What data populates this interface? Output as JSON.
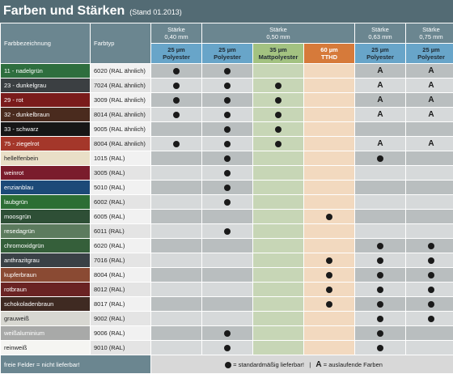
{
  "title": "Farben und Stärken",
  "subtitle": "(Stand 01.2013)",
  "colors": {
    "nadelgruen": "#2e6e3e",
    "dunkelgrau": "#3b3f42",
    "rot": "#7a1b1b",
    "dunkelbraun": "#4a2b1e",
    "schwarz": "#161616",
    "ziegelrot": "#a4372a",
    "hellelfenbein": "#e9dfc7",
    "weinrot": "#7a1c2c",
    "enzianblau": "#1c4a78",
    "laubgruen": "#2c6e34",
    "moosgruen": "#2e4f36",
    "resedagruen": "#5c7b5e",
    "chromoxidgruen": "#355f3a",
    "anthrazitgrau": "#3a4146",
    "kupferbraun": "#8a4a33",
    "rotbraun": "#6a2323",
    "schokoladenbraun": "#3f2a22",
    "grauweiss": "#d7d7d1",
    "weissaluminium": "#a8a9a8",
    "reinweiss": "#f5f5f2"
  },
  "header": {
    "col_name": "Farbbezeichnung",
    "col_typ": "Farbtyp",
    "groups": [
      {
        "label_1": "Stärke",
        "label_2": "0,40 mm"
      },
      {
        "label_1": "Stärke",
        "label_2": "0,50 mm"
      },
      {
        "label_1": "Stärke",
        "label_2": "0,63 mm"
      },
      {
        "label_1": "Stärke",
        "label_2": "0,75 mm"
      }
    ],
    "subs": [
      {
        "l1": "25 µm",
        "l2": "Polyester"
      },
      {
        "l1": "25 µm",
        "l2": "Polyester"
      },
      {
        "l1": "35 µm",
        "l2": "Mattpolyester"
      },
      {
        "l1": "60 µm",
        "l2": "TTHD"
      },
      {
        "l1": "25 µm",
        "l2": "Polyester"
      },
      {
        "l1": "25 µm",
        "l2": "Polyester"
      }
    ]
  },
  "rows": [
    {
      "name": "11 - nadelgrün",
      "typ": "6020 (RAL ähnlich)",
      "color": "#2e6e3e",
      "cells": [
        "dot",
        "dot",
        "",
        "",
        "A",
        "A"
      ]
    },
    {
      "name": "23 - dunkelgrau",
      "typ": "7024 (RAL ähnlich)",
      "color": "#3b3f42",
      "cells": [
        "dot",
        "dot",
        "dot",
        "",
        "A",
        "A"
      ]
    },
    {
      "name": "29 - rot",
      "typ": "3009 (RAL ähnlich)",
      "color": "#7a1b1b",
      "cells": [
        "dot",
        "dot",
        "dot",
        "",
        "A",
        "A"
      ]
    },
    {
      "name": "32 - dunkelbraun",
      "typ": "8014 (RAL ähnlich)",
      "color": "#4a2b1e",
      "cells": [
        "dot",
        "dot",
        "dot",
        "",
        "A",
        "A"
      ]
    },
    {
      "name": "33 - schwarz",
      "typ": "9005 (RAL ähnlich)",
      "color": "#161616",
      "cells": [
        "",
        "dot",
        "dot",
        "",
        "",
        ""
      ]
    },
    {
      "name": "75 - ziegelrot",
      "typ": "8004 (RAL ähnlich)",
      "color": "#a4372a",
      "cells": [
        "dot",
        "dot",
        "dot",
        "",
        "A",
        "A"
      ]
    },
    {
      "name": "hellelfenbein",
      "typ": "1015 (RAL)",
      "color": "#e9dfc7",
      "dark": true,
      "cells": [
        "",
        "dot",
        "",
        "",
        "dot",
        ""
      ]
    },
    {
      "name": "weinrot",
      "typ": "3005 (RAL)",
      "color": "#7a1c2c",
      "cells": [
        "",
        "dot",
        "",
        "",
        "",
        ""
      ]
    },
    {
      "name": "enzianblau",
      "typ": "5010 (RAL)",
      "color": "#1c4a78",
      "cells": [
        "",
        "dot",
        "",
        "",
        "",
        ""
      ]
    },
    {
      "name": "laubgrün",
      "typ": "6002 (RAL)",
      "color": "#2c6e34",
      "cells": [
        "",
        "dot",
        "",
        "",
        "",
        ""
      ]
    },
    {
      "name": "moosgrün",
      "typ": "6005 (RAL)",
      "color": "#2e4f36",
      "cells": [
        "",
        "",
        "",
        "dot",
        "",
        ""
      ]
    },
    {
      "name": "resedagrün",
      "typ": "6011 (RAL)",
      "color": "#5c7b5e",
      "cells": [
        "",
        "dot",
        "",
        "",
        "",
        ""
      ]
    },
    {
      "name": "chromoxidgrün",
      "typ": "6020 (RAL)",
      "color": "#355f3a",
      "cells": [
        "",
        "",
        "",
        "",
        "dot",
        "dot"
      ]
    },
    {
      "name": "anthrazitgrau",
      "typ": "7016 (RAL)",
      "color": "#3a4146",
      "cells": [
        "",
        "",
        "",
        "dot",
        "dot",
        "dot"
      ]
    },
    {
      "name": "kupferbraun",
      "typ": "8004 (RAL)",
      "color": "#8a4a33",
      "cells": [
        "",
        "",
        "",
        "dot",
        "dot",
        "dot"
      ]
    },
    {
      "name": "rotbraun",
      "typ": "8012 (RAL)",
      "color": "#6a2323",
      "cells": [
        "",
        "",
        "",
        "dot",
        "dot",
        "dot"
      ]
    },
    {
      "name": "schokoladenbraun",
      "typ": "8017 (RAL)",
      "color": "#3f2a22",
      "cells": [
        "",
        "",
        "",
        "dot",
        "dot",
        "dot"
      ]
    },
    {
      "name": "grauweiß",
      "typ": "9002 (RAL)",
      "color": "#d7d7d1",
      "dark": true,
      "cells": [
        "",
        "",
        "",
        "",
        "dot",
        "dot"
      ]
    },
    {
      "name": "weißaluminium",
      "typ": "9006 (RAL)",
      "color": "#a8a9a8",
      "cells": [
        "",
        "dot",
        "",
        "",
        "dot",
        ""
      ]
    },
    {
      "name": "reinweiß",
      "typ": "9010 (RAL)",
      "color": "#f5f5f2",
      "dark": true,
      "cells": [
        "",
        "dot",
        "",
        "",
        "dot",
        ""
      ]
    }
  ],
  "footer": {
    "left": "freie Felder = nicht lieferbar!",
    "dot_legend": "= standardmäßig lieferbar!",
    "separator": "|",
    "a_legend": "= auslaufende Farben",
    "a_symbol": "A"
  }
}
